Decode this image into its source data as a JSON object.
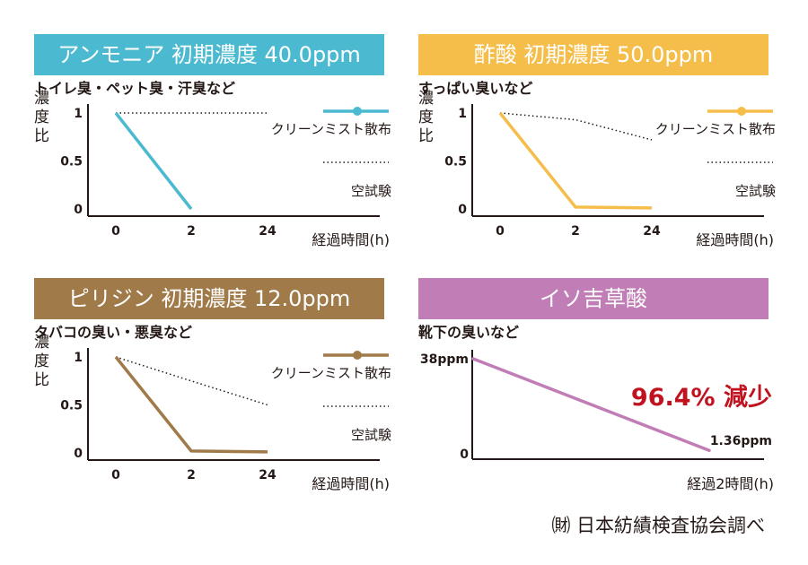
{
  "chart_data": [
    {
      "type": "line",
      "title": "アンモニア 初期濃度 40.0ppm",
      "subtitle": "トイレ臭・ペット臭・汗臭など",
      "ylabel": "濃度比",
      "xlabel": "経過時間(h)",
      "categories": [
        "0",
        "2",
        "24"
      ],
      "y_ticks": [
        "1",
        "0.5",
        "0"
      ],
      "ylim": [
        0,
        1
      ],
      "color": "#4bbad1",
      "series": [
        {
          "name": "クリーンミスト散布",
          "values": [
            1,
            0,
            null
          ],
          "style": "solid"
        },
        {
          "name": "空試験",
          "values": [
            1,
            1,
            1
          ],
          "style": "dotted"
        }
      ]
    },
    {
      "type": "line",
      "title": "酢酸 初期濃度 50.0ppm",
      "subtitle": "すっぱい臭いなど",
      "ylabel": "濃度比",
      "xlabel": "経過時間(h)",
      "categories": [
        "0",
        "2",
        "24"
      ],
      "y_ticks": [
        "1",
        "0.5",
        "0"
      ],
      "ylim": [
        0,
        1
      ],
      "color": "#f5bd4a",
      "series": [
        {
          "name": "クリーンミスト散布",
          "values": [
            1,
            0.02,
            0.01
          ],
          "style": "solid"
        },
        {
          "name": "空試験",
          "values": [
            1,
            0.93,
            0.72
          ],
          "style": "dotted"
        }
      ]
    },
    {
      "type": "line",
      "title": "ピリジン 初期濃度 12.0ppm",
      "subtitle": "タバコの臭い・悪臭など",
      "ylabel": "濃度比",
      "xlabel": "経過時間(h)",
      "categories": [
        "0",
        "2",
        "24"
      ],
      "y_ticks": [
        "1",
        "0.5",
        "0"
      ],
      "ylim": [
        0,
        1
      ],
      "color": "#a07a48",
      "series": [
        {
          "name": "クリーンミスト散布",
          "values": [
            1,
            0.02,
            0.01
          ],
          "style": "solid"
        },
        {
          "name": "空試験",
          "values": [
            1,
            0.75,
            0.5
          ],
          "style": "dotted"
        }
      ]
    },
    {
      "type": "line",
      "title": "イソ吉草酸",
      "subtitle": "靴下の臭いなど",
      "xlabel": "経過2時間(h)",
      "y_ticks": [
        "38ppm",
        "0"
      ],
      "ylim": [
        0,
        38
      ],
      "start_value": 38,
      "end_value": 1.36,
      "end_label": "1.36ppm",
      "annotation": "96.4% 減少",
      "annotation_color": "#c1121f",
      "color": "#c07db6"
    }
  ],
  "colors": {
    "ammonia_header": "#4bbad1",
    "acetic_header": "#f5bd4a",
    "pyridine_header": "#a07a48",
    "isovaleric_header": "#c07db6",
    "axis": "#231815"
  },
  "footer": "㈶ 日本紡績検査協会調べ"
}
